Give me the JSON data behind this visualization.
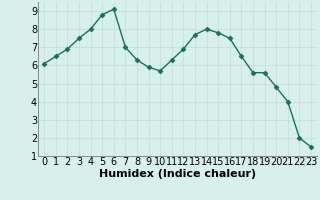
{
  "x": [
    0,
    1,
    2,
    3,
    4,
    5,
    6,
    7,
    8,
    9,
    10,
    11,
    12,
    13,
    14,
    15,
    16,
    17,
    18,
    19,
    20,
    21,
    22,
    23
  ],
  "y": [
    6.1,
    6.5,
    6.9,
    7.5,
    8.0,
    8.8,
    9.1,
    7.0,
    6.3,
    5.9,
    5.7,
    6.3,
    6.9,
    7.7,
    8.0,
    7.8,
    7.5,
    6.5,
    5.6,
    5.6,
    4.8,
    4.0,
    2.0,
    1.5
  ],
  "line_color": "#1a7060",
  "marker": "D",
  "marker_size": 2.5,
  "bg_color": "#d8f0ec",
  "grid_color": "#c0deda",
  "xlabel": "Humidex (Indice chaleur)",
  "xlabel_fontsize": 8,
  "tick_fontsize": 7,
  "xlim": [
    -0.5,
    23.5
  ],
  "ylim": [
    1,
    9.5
  ],
  "yticks": [
    1,
    2,
    3,
    4,
    5,
    6,
    7,
    8,
    9
  ],
  "xticks": [
    0,
    1,
    2,
    3,
    4,
    5,
    6,
    7,
    8,
    9,
    10,
    11,
    12,
    13,
    14,
    15,
    16,
    17,
    18,
    19,
    20,
    21,
    22,
    23
  ]
}
